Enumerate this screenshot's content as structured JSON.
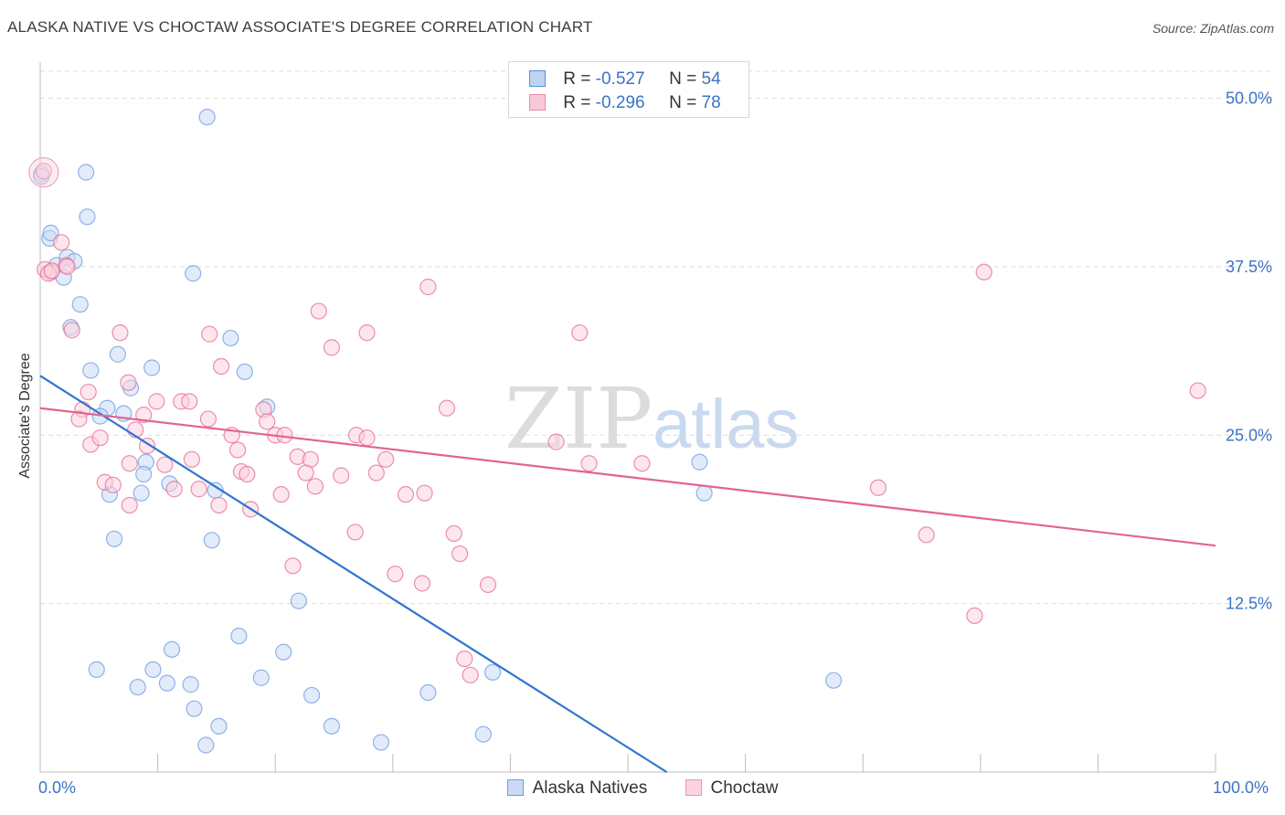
{
  "title": "ALASKA NATIVE VS CHOCTAW ASSOCIATE'S DEGREE CORRELATION CHART",
  "source": "Source: ZipAtlas.com",
  "watermark": {
    "zip": "ZIP",
    "atlas": "atlas"
  },
  "legend": {
    "r_label": "R =",
    "n_label": "N =",
    "rows": [
      {
        "r": "-0.527",
        "n": "54",
        "color": "#a9c6f0",
        "border": "#5b8fd6"
      },
      {
        "r": "-0.296",
        "n": "78",
        "color": "#f7c3d3",
        "border": "#e58aa8"
      }
    ]
  },
  "bottom_legend": [
    {
      "label": "Alaska Natives",
      "color": "#c9daf5",
      "border": "#6e9be0"
    },
    {
      "label": "Choctaw",
      "color": "#fbd2de",
      "border": "#e89ab3"
    }
  ],
  "chart_data": {
    "type": "scatter",
    "title": "ALASKA NATIVE VS CHOCTAW ASSOCIATE'S DEGREE CORRELATION CHART",
    "xlabel": "",
    "ylabel": "Associate's Degree",
    "xlim": [
      0,
      100
    ],
    "ylim": [
      0,
      52
    ],
    "x_tick_labels": [
      "0.0%",
      "100.0%"
    ],
    "y_ticks": [
      12.5,
      25.0,
      37.5,
      50.0
    ],
    "y_tick_labels": [
      "12.5%",
      "25.0%",
      "37.5%",
      "50.0%"
    ],
    "grid": true,
    "series": [
      {
        "name": "Alaska Natives",
        "color": "#6e9be0",
        "fill": "#c9daf5",
        "trend": {
          "x": [
            0,
            53.3
          ],
          "y": [
            29.4,
            0
          ]
        },
        "points": [
          [
            0.1,
            44.4
          ],
          [
            0.8,
            39.6
          ],
          [
            0.9,
            40.0
          ],
          [
            3.9,
            44.5
          ],
          [
            4.0,
            41.2
          ],
          [
            1.4,
            37.6
          ],
          [
            2.0,
            36.7
          ],
          [
            2.3,
            38.2
          ],
          [
            2.9,
            37.9
          ],
          [
            3.4,
            34.7
          ],
          [
            2.6,
            33.0
          ],
          [
            14.2,
            48.6
          ],
          [
            13.0,
            37.0
          ],
          [
            16.2,
            32.2
          ],
          [
            6.6,
            31.0
          ],
          [
            4.3,
            29.8
          ],
          [
            9.5,
            30.0
          ],
          [
            7.7,
            28.5
          ],
          [
            17.4,
            29.7
          ],
          [
            19.3,
            27.1
          ],
          [
            5.7,
            27.0
          ],
          [
            7.1,
            26.6
          ],
          [
            5.1,
            26.4
          ],
          [
            9.0,
            23.0
          ],
          [
            11.0,
            21.4
          ],
          [
            8.8,
            22.1
          ],
          [
            14.9,
            20.9
          ],
          [
            8.6,
            20.7
          ],
          [
            5.9,
            20.6
          ],
          [
            6.3,
            17.3
          ],
          [
            14.6,
            17.2
          ],
          [
            22.0,
            12.7
          ],
          [
            16.9,
            10.1
          ],
          [
            11.2,
            9.1
          ],
          [
            20.7,
            8.9
          ],
          [
            4.8,
            7.6
          ],
          [
            9.6,
            7.6
          ],
          [
            8.3,
            6.3
          ],
          [
            10.8,
            6.6
          ],
          [
            12.8,
            6.5
          ],
          [
            18.8,
            7.0
          ],
          [
            13.1,
            4.7
          ],
          [
            23.1,
            5.7
          ],
          [
            33.0,
            5.9
          ],
          [
            38.5,
            7.4
          ],
          [
            15.2,
            3.4
          ],
          [
            24.8,
            3.4
          ],
          [
            14.1,
            2.0
          ],
          [
            29.0,
            2.2
          ],
          [
            37.7,
            2.8
          ],
          [
            56.1,
            23.0
          ],
          [
            56.5,
            20.7
          ],
          [
            67.5,
            6.8
          ],
          [
            0.1,
            44.2
          ]
        ]
      },
      {
        "name": "Choctaw",
        "color": "#e46b95",
        "fill": "#fbd2de",
        "trend": {
          "x": [
            0,
            100
          ],
          "y": [
            27.0,
            16.8
          ]
        },
        "points": [
          [
            0.3,
            44.6
          ],
          [
            1.8,
            39.3
          ],
          [
            0.9,
            37.1
          ],
          [
            2.2,
            37.6
          ],
          [
            2.7,
            32.8
          ],
          [
            33.0,
            36.0
          ],
          [
            23.7,
            34.2
          ],
          [
            24.8,
            31.5
          ],
          [
            27.8,
            32.6
          ],
          [
            14.4,
            32.5
          ],
          [
            15.4,
            30.1
          ],
          [
            6.8,
            32.6
          ],
          [
            45.9,
            32.6
          ],
          [
            80.3,
            37.1
          ],
          [
            98.5,
            28.3
          ],
          [
            7.5,
            28.9
          ],
          [
            4.1,
            28.2
          ],
          [
            9.9,
            27.5
          ],
          [
            12.0,
            27.5
          ],
          [
            12.7,
            27.5
          ],
          [
            3.6,
            26.9
          ],
          [
            8.8,
            26.5
          ],
          [
            14.3,
            26.2
          ],
          [
            3.3,
            26.2
          ],
          [
            19.0,
            26.9
          ],
          [
            19.3,
            26.0
          ],
          [
            8.1,
            25.4
          ],
          [
            34.6,
            27.0
          ],
          [
            16.3,
            25.0
          ],
          [
            20.0,
            25.0
          ],
          [
            20.8,
            25.0
          ],
          [
            26.9,
            25.0
          ],
          [
            27.8,
            24.8
          ],
          [
            4.3,
            24.3
          ],
          [
            5.1,
            24.8
          ],
          [
            9.1,
            24.2
          ],
          [
            43.9,
            24.5
          ],
          [
            16.8,
            23.9
          ],
          [
            21.9,
            23.4
          ],
          [
            23.0,
            23.2
          ],
          [
            12.9,
            23.2
          ],
          [
            29.4,
            23.2
          ],
          [
            7.6,
            22.9
          ],
          [
            10.6,
            22.8
          ],
          [
            46.7,
            22.9
          ],
          [
            51.2,
            22.9
          ],
          [
            17.1,
            22.3
          ],
          [
            17.6,
            22.1
          ],
          [
            22.6,
            22.2
          ],
          [
            25.6,
            22.0
          ],
          [
            28.6,
            22.2
          ],
          [
            5.5,
            21.5
          ],
          [
            6.2,
            21.3
          ],
          [
            11.4,
            21.0
          ],
          [
            13.5,
            21.0
          ],
          [
            23.4,
            21.2
          ],
          [
            31.1,
            20.6
          ],
          [
            32.7,
            20.7
          ],
          [
            20.5,
            20.6
          ],
          [
            7.6,
            19.8
          ],
          [
            15.2,
            19.8
          ],
          [
            17.9,
            19.5
          ],
          [
            71.3,
            21.1
          ],
          [
            26.8,
            17.8
          ],
          [
            35.2,
            17.7
          ],
          [
            75.4,
            17.6
          ],
          [
            35.7,
            16.2
          ],
          [
            21.5,
            15.3
          ],
          [
            30.2,
            14.7
          ],
          [
            32.5,
            14.0
          ],
          [
            38.1,
            13.9
          ],
          [
            79.5,
            11.6
          ],
          [
            36.1,
            8.4
          ],
          [
            36.6,
            7.2
          ],
          [
            2.3,
            37.5
          ],
          [
            0.4,
            37.3
          ],
          [
            0.7,
            37.0
          ],
          [
            1.0,
            37.2
          ]
        ]
      }
    ]
  }
}
